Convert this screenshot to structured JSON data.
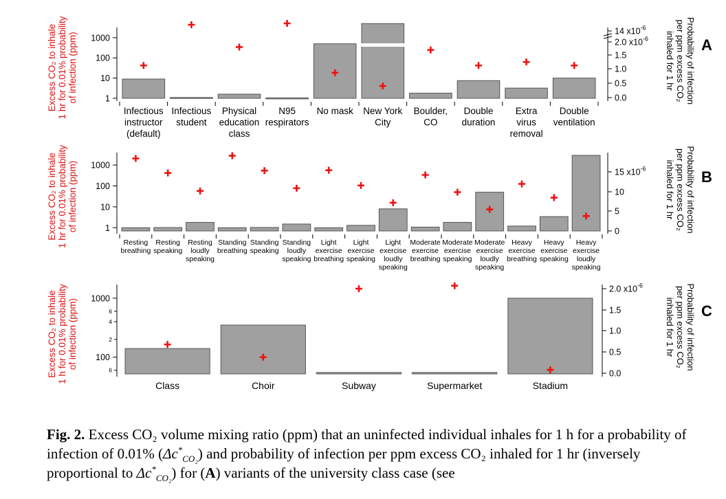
{
  "chart_data": [
    {
      "type": "bar",
      "panel_label": "A",
      "categories": [
        "Infectious\ninstructor\n(default)",
        "Infectious\nstudent",
        "Physical\neducation\nclass",
        "N95\nrespirators",
        "No mask",
        "New York\nCity",
        "Boulder,\nCO",
        "Double\nduration",
        "Extra\nvirus\nremoval",
        "Double\nventilation"
      ],
      "y_left": {
        "label_lines": [
          "Excess CO₂ to inhale",
          "1 hr for 0.01% probability",
          "of infection (ppm)"
        ],
        "scale": "log",
        "lim": [
          1,
          2000
        ],
        "ticks": [
          "1",
          "10",
          "100",
          "1000"
        ],
        "series": "Excess CO₂ to inhale (bars)",
        "values": [
          9,
          1.1,
          1.6,
          1.05,
          500,
          5000,
          1.8,
          7.5,
          3.2,
          10
        ]
      },
      "y_right": {
        "label_lines": [
          "Probability of infection",
          "per ppm excess CO₂",
          "inhaled for 1 hr"
        ],
        "scale": "broken",
        "ticks": [
          "0.0",
          "0.5",
          "1.0",
          "1.5",
          "2.0 x10",
          "14 x10"
        ],
        "tick_exponent": "-6",
        "series": "Probability of infection per ppm excess CO₂ (crosses)",
        "values_x1e6": [
          1.1,
          14.0,
          1.73,
          14.5,
          0.85,
          0.4,
          1.63,
          1.1,
          1.22,
          1.1
        ]
      }
    },
    {
      "type": "bar",
      "panel_label": "B",
      "categories": [
        "Resting\nbreathing",
        "Resting\nspeaking",
        "Resting\nloudly\nspeaking",
        "Standing\nbreathing",
        "Standing\nspeaking",
        "Standing\nloudly\nspeaking",
        "Light\nexercise\nbreathing",
        "Light\nexercise\nspeaking",
        "Light\nexercise\nloudly\nspeaking",
        "Moderate\nexercise\nbreathing",
        "Moderate\nexercise\nspeaking",
        "Moderate\nexercise\nloudly\nspeaking",
        "Heavy\nexercise\nbreathing",
        "Heavy\nexercise\nspeaking",
        "Heavy\nexercise\nloudly\nspeaking"
      ],
      "y_left": {
        "label_lines": [
          "Excess CO₂ to inhale",
          "1 hr for 0.01% probability",
          "of infection (ppm)"
        ],
        "scale": "log",
        "lim": [
          0.7,
          2500
        ],
        "ticks": [
          "1",
          "10",
          "100",
          "1000"
        ],
        "series": "Excess CO₂ to inhale (bars)",
        "values": [
          1.0,
          1.02,
          1.8,
          1.0,
          1.03,
          1.5,
          1.0,
          1.3,
          8,
          1.07,
          1.8,
          50,
          1.2,
          3.4,
          2900
        ]
      },
      "y_right": {
        "label_lines": [
          "Probability of infection",
          "per ppm excess CO₂",
          "inhaled for 1 hr"
        ],
        "scale": "linear",
        "lim": [
          -1,
          19
        ],
        "ticks": [
          "0",
          "5",
          "10",
          "15 x10"
        ],
        "tick_exponent": "-6",
        "series": "Probability of infection per ppm excess CO₂ (crosses)",
        "values_x1e6": [
          18.5,
          14.8,
          10.2,
          19.2,
          15.4,
          10.9,
          15.5,
          11.6,
          7.2,
          14.3,
          9.9,
          5.5,
          12.0,
          8.5,
          3.8
        ]
      }
    },
    {
      "type": "bar",
      "panel_label": "C",
      "categories": [
        "Class",
        "Choir",
        "Subway",
        "Supermarket",
        "Stadium"
      ],
      "y_left": {
        "label_lines": [
          "Excess CO₂ to inhale",
          "1 h for 0.01% probability",
          "of infection (ppm)"
        ],
        "scale": "log",
        "lim": [
          52,
          1450
        ],
        "ticks": [
          "1000",
          "100"
        ],
        "minor_tick_labels": [
          "6",
          "4",
          "2",
          "6"
        ],
        "series": "Excess CO₂ to inhale (bars)",
        "values": [
          140,
          350,
          55,
          55,
          1000
        ]
      },
      "y_right": {
        "label_lines": [
          "Probability of infection",
          "per ppm excess CO₂",
          "inhaled for 1 hr"
        ],
        "scale": "linear",
        "lim": [
          -0.05,
          2.2
        ],
        "ticks": [
          "0.0",
          "0.5",
          "1.0",
          "1.5",
          "2.0 x10"
        ],
        "tick_exponent": "-6",
        "series": "Probability of infection per ppm excess CO₂ (crosses)",
        "values_x1e6": [
          0.68,
          0.38,
          2.0,
          2.07,
          0.08
        ]
      }
    }
  ],
  "colors": {
    "bar_fill": "#a0a0a0",
    "bar_stroke": "#555555",
    "cross": "#ee1111",
    "left_axis_label": "#dd1111",
    "axis": "#000000"
  },
  "caption": {
    "fig_label": "Fig. 2.",
    "part1": " Excess CO₂ volume mixing ratio (ppm) that an uninfected individual inhales for 1 h for a probability of infection of 0.01% (",
    "symbol_base": "Δc",
    "symbol_sup": "*",
    "symbol_sub": "CO₂",
    "part2": ") and probability of infection per ppm excess CO₂ inhaled for 1 hr (inversely proportional to ",
    "part3": ") for (",
    "bold_a": "A",
    "part4": ") variants of the university class case (see"
  }
}
